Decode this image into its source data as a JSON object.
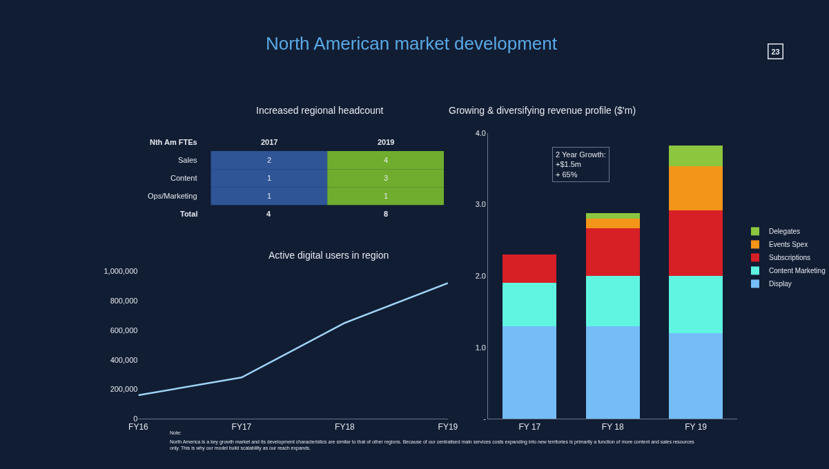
{
  "chart_data": [
    {
      "type": "other",
      "title": "North American market development",
      "annotations": [
        "23",
        "Note:",
        "North America is a key growth market and its development characteristics are similar to that of other regions. Because of our centralised main services costs expanding into new territories is primarily a function of more content and sales resources only. This is why our model build scalability as our reach expands."
      ]
    },
    {
      "type": "heatmap",
      "title": "Increased regional headcount",
      "ylabel": "Nth Am FTEs",
      "categories": [
        "2017",
        "2019"
      ],
      "y_categories": [
        "Sales",
        "Content",
        "Ops/Marketing"
      ],
      "cells": [
        [
          2,
          4
        ],
        [
          1,
          3
        ],
        [
          1,
          1
        ]
      ],
      "colors": [
        "#2f5597",
        "#70ad2f"
      ],
      "data_labels": true,
      "totals": [
        "4",
        "8"
      ],
      "annotations": [
        "Total"
      ]
    },
    {
      "type": "line",
      "title": "Active digital users in region",
      "categories": [
        "FY16",
        "FY17",
        "FY18",
        "FY19"
      ],
      "series": [
        {
          "color": "#9fd3f7",
          "values": [
            160000,
            280000,
            650000,
            920000
          ]
        }
      ],
      "ylim": [
        0,
        1000000
      ],
      "yticks": [
        0,
        {
          "value": 200000,
          "label": "200,000"
        },
        {
          "value": 400000,
          "label": "400,000"
        },
        {
          "value": 600000,
          "label": "600,000"
        },
        {
          "value": 800000,
          "label": "800,000"
        },
        {
          "value": 1000000,
          "label": "1,000,000"
        }
      ],
      "grid": false,
      "legend": false,
      "marker": "none",
      "line_style": "solid"
    },
    {
      "type": "bar",
      "stacked": true,
      "title": "Growing & diversifying revenue profile ($'m)",
      "categories": [
        "FY 17",
        "FY 18",
        "FY 19"
      ],
      "series": [
        {
          "name": "Display",
          "color": "#74bdf7",
          "values": [
            1.3,
            1.3,
            1.2
          ]
        },
        {
          "name": "Content Marketing",
          "color": "#5ff5e0",
          "values": [
            0.6,
            0.7,
            0.8
          ]
        },
        {
          "name": "Subscriptions",
          "color": "#d71f26",
          "values": [
            0.4,
            0.67,
            0.92
          ]
        },
        {
          "name": "Events Spex",
          "color": "#f39519",
          "values": [
            null,
            0.13,
            0.62
          ]
        },
        {
          "name": "Delegates",
          "color": "#8cc63f",
          "values": [
            null,
            0.08,
            0.29
          ]
        }
      ],
      "ylim": [
        0,
        4
      ],
      "yticks": [
        {
          "value": 0,
          "label": "-"
        },
        {
          "value": 1,
          "label": "1.0"
        },
        {
          "value": 2,
          "label": "2.0"
        },
        {
          "value": 3,
          "label": "3.0"
        },
        {
          "value": 4,
          "label": "4.0"
        }
      ],
      "annotations": [
        "2 Year Growth:\n+$1.5m\n+ 65%"
      ],
      "grid": false,
      "legend": "right"
    }
  ]
}
